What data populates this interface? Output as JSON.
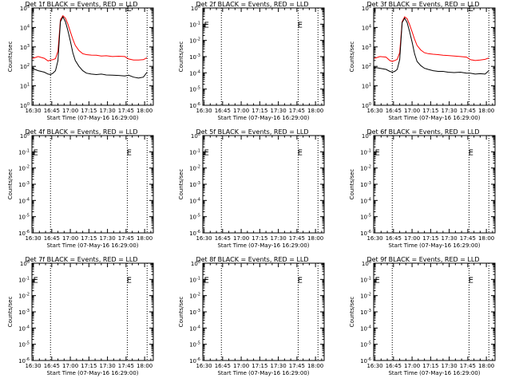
{
  "xaxis_label": "Start Time (07-May-16 16:29:00)",
  "ylabel": "Counts/sec",
  "x_ticks": [
    "16:30",
    "16:45",
    "17:00",
    "17:15",
    "17:30",
    "17:45",
    "18:00"
  ],
  "time_range_min": [
    0,
    98
  ],
  "colors": {
    "events": "#000000",
    "lld": "#ff0000",
    "axis": "#000000",
    "background": "#ffffff"
  },
  "chart_data": [
    {
      "type": "line",
      "title": "Det 1f BLACK = Events, RED = LLD",
      "yscale": "log",
      "ylim": [
        1,
        100000
      ],
      "y_ticks": [
        "10^0",
        "10^1",
        "10^2",
        "10^3",
        "10^4",
        "10^5"
      ],
      "dotted_lines_min": [
        15,
        77,
        93
      ],
      "marker_labels": [
        {
          "text": "E",
          "x_min": 76.5,
          "y": 100000
        }
      ],
      "x": [
        0,
        5,
        10,
        13,
        15,
        17,
        19,
        21,
        23,
        25,
        27,
        29,
        31,
        33,
        35,
        38,
        41,
        44,
        48,
        52,
        56,
        60,
        65,
        70,
        75,
        78,
        82,
        86,
        90,
        93
      ],
      "series": [
        {
          "name": "LLD",
          "color": "#ff0000",
          "values": [
            250,
            320,
            260,
            190,
            210,
            220,
            250,
            600,
            25000,
            40000,
            30000,
            15000,
            6000,
            2500,
            1200,
            650,
            450,
            400,
            380,
            370,
            340,
            350,
            320,
            330,
            320,
            240,
            210,
            210,
            220,
            280
          ]
        },
        {
          "name": "Events",
          "color": "#000000",
          "values": [
            80,
            60,
            50,
            40,
            38,
            45,
            60,
            200,
            20000,
            35000,
            20000,
            7000,
            2000,
            500,
            200,
            100,
            60,
            45,
            40,
            38,
            40,
            36,
            35,
            34,
            32,
            35,
            28,
            25,
            28,
            50
          ]
        }
      ]
    },
    {
      "type": "line",
      "title": "Det 2f BLACK = Events, RED = LLD",
      "yscale": "log",
      "ylim": [
        1e-06,
        1
      ],
      "y_ticks": [
        "10^-6",
        "10^-5",
        "10^-4",
        "10^-3",
        "10^-2",
        "10^-1",
        "10^0"
      ],
      "dotted_lines_min": [
        15,
        77,
        93
      ],
      "marker_labels": [
        {
          "text": "E",
          "x_min": 1,
          "y": 0.1
        },
        {
          "text": "E",
          "x_min": 76.5,
          "y": 0.1
        }
      ],
      "series": []
    },
    {
      "type": "line",
      "title": "Det 3f BLACK = Events, RED = LLD",
      "yscale": "log",
      "ylim": [
        1,
        100000
      ],
      "y_ticks": [
        "10^0",
        "10^1",
        "10^2",
        "10^3",
        "10^4",
        "10^5"
      ],
      "dotted_lines_min": [
        15,
        77,
        93
      ],
      "marker_labels": [
        {
          "text": "E",
          "x_min": 76.5,
          "y": 100000
        }
      ],
      "x": [
        0,
        5,
        10,
        13,
        15,
        17,
        19,
        21,
        23,
        25,
        27,
        29,
        31,
        33,
        35,
        38,
        41,
        44,
        48,
        52,
        56,
        60,
        65,
        70,
        75,
        78,
        82,
        86,
        90,
        93
      ],
      "series": [
        {
          "name": "LLD",
          "color": "#ff0000",
          "values": [
            250,
            320,
            300,
            200,
            180,
            200,
            230,
            500,
            20000,
            35000,
            28000,
            14000,
            6000,
            2500,
            1200,
            700,
            500,
            450,
            420,
            400,
            370,
            360,
            340,
            320,
            300,
            220,
            200,
            210,
            230,
            270
          ]
        },
        {
          "name": "Events",
          "color": "#000000",
          "values": [
            90,
            80,
            70,
            55,
            50,
            55,
            70,
            220,
            18000,
            30000,
            18000,
            6000,
            1800,
            450,
            180,
            110,
            80,
            70,
            60,
            55,
            55,
            50,
            48,
            50,
            45,
            45,
            40,
            42,
            40,
            60
          ]
        }
      ]
    },
    {
      "type": "line",
      "title": "Det 4f BLACK = Events, RED = LLD",
      "yscale": "log",
      "ylim": [
        1e-06,
        1
      ],
      "y_ticks": [
        "10^-6",
        "10^-5",
        "10^-4",
        "10^-3",
        "10^-2",
        "10^-1",
        "10^0"
      ],
      "dotted_lines_min": [
        15,
        77,
        93
      ],
      "marker_labels": [
        {
          "text": "E",
          "x_min": 1,
          "y": 0.1
        },
        {
          "text": "E",
          "x_min": 76.5,
          "y": 0.1
        }
      ],
      "series": []
    },
    {
      "type": "line",
      "title": "Det 5f BLACK = Events, RED = LLD",
      "yscale": "log",
      "ylim": [
        1e-06,
        1
      ],
      "y_ticks": [
        "10^-6",
        "10^-5",
        "10^-4",
        "10^-3",
        "10^-2",
        "10^-1",
        "10^0"
      ],
      "dotted_lines_min": [
        15,
        77,
        93
      ],
      "marker_labels": [
        {
          "text": "E",
          "x_min": 1,
          "y": 0.1
        },
        {
          "text": "E",
          "x_min": 76.5,
          "y": 0.1
        }
      ],
      "series": []
    },
    {
      "type": "line",
      "title": "Det 6f BLACK = Events, RED = LLD",
      "yscale": "log",
      "ylim": [
        1e-06,
        1
      ],
      "y_ticks": [
        "10^-6",
        "10^-5",
        "10^-4",
        "10^-3",
        "10^-2",
        "10^-1",
        "10^0"
      ],
      "dotted_lines_min": [
        15,
        77,
        93
      ],
      "marker_labels": [
        {
          "text": "E",
          "x_min": 1,
          "y": 0.1
        },
        {
          "text": "E",
          "x_min": 76.5,
          "y": 0.1
        }
      ],
      "series": []
    },
    {
      "type": "line",
      "title": "Det 7f BLACK = Events, RED = LLD",
      "yscale": "log",
      "ylim": [
        1e-06,
        1
      ],
      "y_ticks": [
        "10^-6",
        "10^-5",
        "10^-4",
        "10^-3",
        "10^-2",
        "10^-1",
        "10^0"
      ],
      "dotted_lines_min": [
        15,
        77,
        93
      ],
      "marker_labels": [
        {
          "text": "E",
          "x_min": 1,
          "y": 0.1
        },
        {
          "text": "E",
          "x_min": 76.5,
          "y": 0.1
        }
      ],
      "series": []
    },
    {
      "type": "line",
      "title": "Det 8f BLACK = Events, RED = LLD",
      "yscale": "log",
      "ylim": [
        1e-06,
        1
      ],
      "y_ticks": [
        "10^-6",
        "10^-5",
        "10^-4",
        "10^-3",
        "10^-2",
        "10^-1",
        "10^0"
      ],
      "dotted_lines_min": [
        15,
        77,
        93
      ],
      "marker_labels": [
        {
          "text": "E",
          "x_min": 1,
          "y": 0.1
        },
        {
          "text": "E",
          "x_min": 76.5,
          "y": 0.1
        }
      ],
      "series": []
    },
    {
      "type": "line",
      "title": "Det 9f BLACK = Events, RED = LLD",
      "yscale": "log",
      "ylim": [
        1e-06,
        1
      ],
      "y_ticks": [
        "10^-6",
        "10^-5",
        "10^-4",
        "10^-3",
        "10^-2",
        "10^-1",
        "10^0"
      ],
      "dotted_lines_min": [
        15,
        77,
        93
      ],
      "marker_labels": [
        {
          "text": "E",
          "x_min": 1,
          "y": 0.1
        },
        {
          "text": "E",
          "x_min": 76.5,
          "y": 0.1
        }
      ],
      "series": []
    }
  ]
}
